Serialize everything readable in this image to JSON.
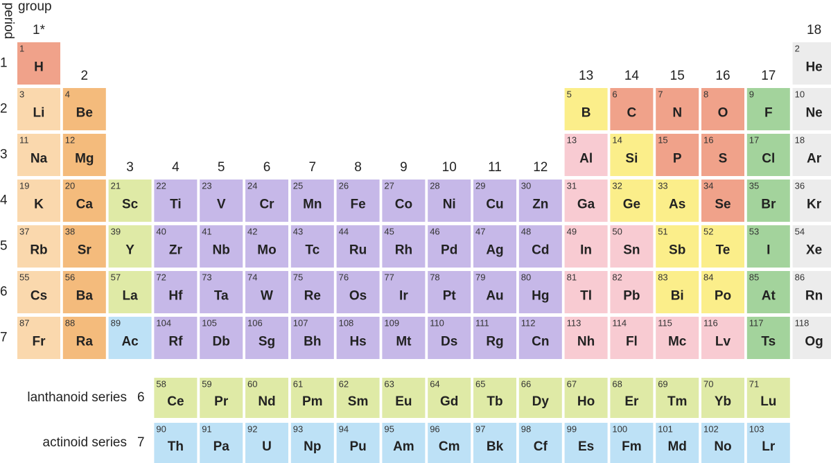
{
  "header": {
    "group": "group",
    "period": "period"
  },
  "group_labels": [
    "1*",
    "2",
    "3",
    "4",
    "5",
    "6",
    "7",
    "8",
    "9",
    "10",
    "11",
    "12",
    "13",
    "14",
    "15",
    "16",
    "17",
    "18"
  ],
  "periods": [
    {
      "label": "1",
      "cells": [
        {
          "number": 1,
          "symbol": "H",
          "color": "#f0a28a"
        },
        null,
        null,
        null,
        null,
        null,
        null,
        null,
        null,
        null,
        null,
        null,
        null,
        null,
        null,
        null,
        null,
        {
          "number": 2,
          "symbol": "He",
          "color": "#ececec"
        }
      ]
    },
    {
      "label": "2",
      "cells": [
        {
          "number": 3,
          "symbol": "Li",
          "color": "#fad8ad"
        },
        {
          "number": 4,
          "symbol": "Be",
          "color": "#f4bb7c"
        },
        null,
        null,
        null,
        null,
        null,
        null,
        null,
        null,
        null,
        null,
        {
          "number": 5,
          "symbol": "B",
          "color": "#fbee8a"
        },
        {
          "number": 6,
          "symbol": "C",
          "color": "#f0a28a"
        },
        {
          "number": 7,
          "symbol": "N",
          "color": "#f0a28a"
        },
        {
          "number": 8,
          "symbol": "O",
          "color": "#f0a28a"
        },
        {
          "number": 9,
          "symbol": "F",
          "color": "#a3d39c"
        },
        {
          "number": 10,
          "symbol": "Ne",
          "color": "#ececec"
        }
      ]
    },
    {
      "label": "3",
      "cells": [
        {
          "number": 11,
          "symbol": "Na",
          "color": "#fad8ad"
        },
        {
          "number": 12,
          "symbol": "Mg",
          "color": "#f4bb7c"
        },
        null,
        null,
        null,
        null,
        null,
        null,
        null,
        null,
        null,
        null,
        {
          "number": 13,
          "symbol": "Al",
          "color": "#f8cbd2"
        },
        {
          "number": 14,
          "symbol": "Si",
          "color": "#fbee8a"
        },
        {
          "number": 15,
          "symbol": "P",
          "color": "#f0a28a"
        },
        {
          "number": 16,
          "symbol": "S",
          "color": "#f0a28a"
        },
        {
          "number": 17,
          "symbol": "Cl",
          "color": "#a3d39c"
        },
        {
          "number": 18,
          "symbol": "Ar",
          "color": "#ececec"
        }
      ]
    },
    {
      "label": "4",
      "cells": [
        {
          "number": 19,
          "symbol": "K",
          "color": "#fad8ad"
        },
        {
          "number": 20,
          "symbol": "Ca",
          "color": "#f4bb7c"
        },
        {
          "number": 21,
          "symbol": "Sc",
          "color": "#dfeaa6"
        },
        {
          "number": 22,
          "symbol": "Ti",
          "color": "#c6b8e8"
        },
        {
          "number": 23,
          "symbol": "V",
          "color": "#c6b8e8"
        },
        {
          "number": 24,
          "symbol": "Cr",
          "color": "#c6b8e8"
        },
        {
          "number": 25,
          "symbol": "Mn",
          "color": "#c6b8e8"
        },
        {
          "number": 26,
          "symbol": "Fe",
          "color": "#c6b8e8"
        },
        {
          "number": 27,
          "symbol": "Co",
          "color": "#c6b8e8"
        },
        {
          "number": 28,
          "symbol": "Ni",
          "color": "#c6b8e8"
        },
        {
          "number": 29,
          "symbol": "Cu",
          "color": "#c6b8e8"
        },
        {
          "number": 30,
          "symbol": "Zn",
          "color": "#c6b8e8"
        },
        {
          "number": 31,
          "symbol": "Ga",
          "color": "#f8cbd2"
        },
        {
          "number": 32,
          "symbol": "Ge",
          "color": "#fbee8a"
        },
        {
          "number": 33,
          "symbol": "As",
          "color": "#fbee8a"
        },
        {
          "number": 34,
          "symbol": "Se",
          "color": "#f0a28a"
        },
        {
          "number": 35,
          "symbol": "Br",
          "color": "#a3d39c"
        },
        {
          "number": 36,
          "symbol": "Kr",
          "color": "#ececec"
        }
      ]
    },
    {
      "label": "5",
      "cells": [
        {
          "number": 37,
          "symbol": "Rb",
          "color": "#fad8ad"
        },
        {
          "number": 38,
          "symbol": "Sr",
          "color": "#f4bb7c"
        },
        {
          "number": 39,
          "symbol": "Y",
          "color": "#dfeaa6"
        },
        {
          "number": 40,
          "symbol": "Zr",
          "color": "#c6b8e8"
        },
        {
          "number": 41,
          "symbol": "Nb",
          "color": "#c6b8e8"
        },
        {
          "number": 42,
          "symbol": "Mo",
          "color": "#c6b8e8"
        },
        {
          "number": 43,
          "symbol": "Tc",
          "color": "#c6b8e8"
        },
        {
          "number": 44,
          "symbol": "Ru",
          "color": "#c6b8e8"
        },
        {
          "number": 45,
          "symbol": "Rh",
          "color": "#c6b8e8"
        },
        {
          "number": 46,
          "symbol": "Pd",
          "color": "#c6b8e8"
        },
        {
          "number": 47,
          "symbol": "Ag",
          "color": "#c6b8e8"
        },
        {
          "number": 48,
          "symbol": "Cd",
          "color": "#c6b8e8"
        },
        {
          "number": 49,
          "symbol": "In",
          "color": "#f8cbd2"
        },
        {
          "number": 50,
          "symbol": "Sn",
          "color": "#f8cbd2"
        },
        {
          "number": 51,
          "symbol": "Sb",
          "color": "#fbee8a"
        },
        {
          "number": 52,
          "symbol": "Te",
          "color": "#fbee8a"
        },
        {
          "number": 53,
          "symbol": "I",
          "color": "#a3d39c"
        },
        {
          "number": 54,
          "symbol": "Xe",
          "color": "#ececec"
        }
      ]
    },
    {
      "label": "6",
      "cells": [
        {
          "number": 55,
          "symbol": "Cs",
          "color": "#fad8ad"
        },
        {
          "number": 56,
          "symbol": "Ba",
          "color": "#f4bb7c"
        },
        {
          "number": 57,
          "symbol": "La",
          "color": "#dfeaa6"
        },
        {
          "number": 72,
          "symbol": "Hf",
          "color": "#c6b8e8"
        },
        {
          "number": 73,
          "symbol": "Ta",
          "color": "#c6b8e8"
        },
        {
          "number": 74,
          "symbol": "W",
          "color": "#c6b8e8"
        },
        {
          "number": 75,
          "symbol": "Re",
          "color": "#c6b8e8"
        },
        {
          "number": 76,
          "symbol": "Os",
          "color": "#c6b8e8"
        },
        {
          "number": 77,
          "symbol": "Ir",
          "color": "#c6b8e8"
        },
        {
          "number": 78,
          "symbol": "Pt",
          "color": "#c6b8e8"
        },
        {
          "number": 79,
          "symbol": "Au",
          "color": "#c6b8e8"
        },
        {
          "number": 80,
          "symbol": "Hg",
          "color": "#c6b8e8"
        },
        {
          "number": 81,
          "symbol": "Tl",
          "color": "#f8cbd2"
        },
        {
          "number": 82,
          "symbol": "Pb",
          "color": "#f8cbd2"
        },
        {
          "number": 83,
          "symbol": "Bi",
          "color": "#fbee8a"
        },
        {
          "number": 84,
          "symbol": "Po",
          "color": "#fbee8a"
        },
        {
          "number": 85,
          "symbol": "At",
          "color": "#a3d39c"
        },
        {
          "number": 86,
          "symbol": "Rn",
          "color": "#ececec"
        }
      ]
    },
    {
      "label": "7",
      "cells": [
        {
          "number": 87,
          "symbol": "Fr",
          "color": "#fad8ad"
        },
        {
          "number": 88,
          "symbol": "Ra",
          "color": "#f4bb7c"
        },
        {
          "number": 89,
          "symbol": "Ac",
          "color": "#bde1f6"
        },
        {
          "number": 104,
          "symbol": "Rf",
          "color": "#c6b8e8"
        },
        {
          "number": 105,
          "symbol": "Db",
          "color": "#c6b8e8"
        },
        {
          "number": 106,
          "symbol": "Sg",
          "color": "#c6b8e8"
        },
        {
          "number": 107,
          "symbol": "Bh",
          "color": "#c6b8e8"
        },
        {
          "number": 108,
          "symbol": "Hs",
          "color": "#c6b8e8"
        },
        {
          "number": 109,
          "symbol": "Mt",
          "color": "#c6b8e8"
        },
        {
          "number": 110,
          "symbol": "Ds",
          "color": "#c6b8e8"
        },
        {
          "number": 111,
          "symbol": "Rg",
          "color": "#c6b8e8"
        },
        {
          "number": 112,
          "symbol": "Cn",
          "color": "#c6b8e8"
        },
        {
          "number": 113,
          "symbol": "Nh",
          "color": "#f8cbd2"
        },
        {
          "number": 114,
          "symbol": "Fl",
          "color": "#f8cbd2"
        },
        {
          "number": 115,
          "symbol": "Mc",
          "color": "#f8cbd2"
        },
        {
          "number": 116,
          "symbol": "Lv",
          "color": "#f8cbd2"
        },
        {
          "number": 117,
          "symbol": "Ts",
          "color": "#a3d39c"
        },
        {
          "number": 118,
          "symbol": "Og",
          "color": "#ececec"
        }
      ]
    }
  ],
  "series": [
    {
      "label": "lanthanoid series",
      "period": "6",
      "cells": [
        null,
        null,
        null,
        {
          "number": 58,
          "symbol": "Ce",
          "color": "#dfeaa6"
        },
        {
          "number": 59,
          "symbol": "Pr",
          "color": "#dfeaa6"
        },
        {
          "number": 60,
          "symbol": "Nd",
          "color": "#dfeaa6"
        },
        {
          "number": 61,
          "symbol": "Pm",
          "color": "#dfeaa6"
        },
        {
          "number": 62,
          "symbol": "Sm",
          "color": "#dfeaa6"
        },
        {
          "number": 63,
          "symbol": "Eu",
          "color": "#dfeaa6"
        },
        {
          "number": 64,
          "symbol": "Gd",
          "color": "#dfeaa6"
        },
        {
          "number": 65,
          "symbol": "Tb",
          "color": "#dfeaa6"
        },
        {
          "number": 66,
          "symbol": "Dy",
          "color": "#dfeaa6"
        },
        {
          "number": 67,
          "symbol": "Ho",
          "color": "#dfeaa6"
        },
        {
          "number": 68,
          "symbol": "Er",
          "color": "#dfeaa6"
        },
        {
          "number": 69,
          "symbol": "Tm",
          "color": "#dfeaa6"
        },
        {
          "number": 70,
          "symbol": "Yb",
          "color": "#dfeaa6"
        },
        {
          "number": 71,
          "symbol": "Lu",
          "color": "#dfeaa6"
        },
        null
      ]
    },
    {
      "label": "actinoid series",
      "period": "7",
      "cells": [
        null,
        null,
        null,
        {
          "number": 90,
          "symbol": "Th",
          "color": "#bde1f6"
        },
        {
          "number": 91,
          "symbol": "Pa",
          "color": "#bde1f6"
        },
        {
          "number": 92,
          "symbol": "U",
          "color": "#bde1f6"
        },
        {
          "number": 93,
          "symbol": "Np",
          "color": "#bde1f6"
        },
        {
          "number": 94,
          "symbol": "Pu",
          "color": "#bde1f6"
        },
        {
          "number": 95,
          "symbol": "Am",
          "color": "#bde1f6"
        },
        {
          "number": 96,
          "symbol": "Cm",
          "color": "#bde1f6"
        },
        {
          "number": 97,
          "symbol": "Bk",
          "color": "#bde1f6"
        },
        {
          "number": 98,
          "symbol": "Cf",
          "color": "#bde1f6"
        },
        {
          "number": 99,
          "symbol": "Es",
          "color": "#bde1f6"
        },
        {
          "number": 100,
          "symbol": "Fm",
          "color": "#bde1f6"
        },
        {
          "number": 101,
          "symbol": "Md",
          "color": "#bde1f6"
        },
        {
          "number": 102,
          "symbol": "No",
          "color": "#bde1f6"
        },
        {
          "number": 103,
          "symbol": "Lr",
          "color": "#bde1f6"
        },
        null
      ]
    }
  ]
}
